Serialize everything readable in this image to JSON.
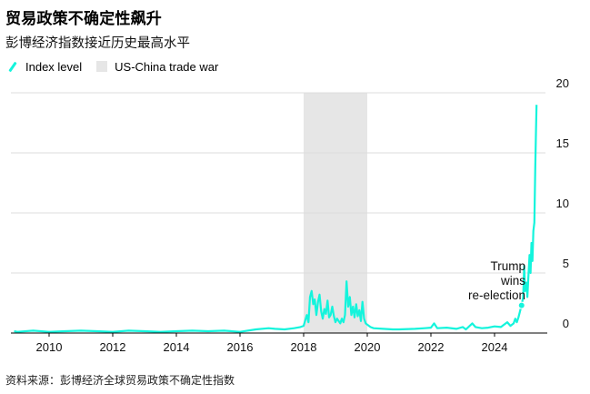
{
  "title": "贸易政策不确定性飙升",
  "subtitle": "彭博经济指数接近历史最高水平",
  "legend": {
    "series_label": "Index level",
    "shade_label": "US-China trade war"
  },
  "source": "资料来源：彭博经济全球贸易政策不确定性指数",
  "colors": {
    "line": "#14F4DC",
    "shade": "#e6e6e6",
    "grid": "#dcdcdc",
    "axis": "#000000"
  },
  "chart_data": {
    "type": "line",
    "title": "贸易政策不确定性飙升",
    "subtitle": "彭博经济指数接近历史最高水平",
    "xlabel": "",
    "ylabel": "",
    "xlim": [
      2008.8,
      2025.6
    ],
    "ylim": [
      0,
      20
    ],
    "x_ticks": [
      2010,
      2012,
      2014,
      2016,
      2018,
      2020,
      2022,
      2024
    ],
    "x_tick_labels": [
      "2010",
      "2012",
      "2014",
      "2016",
      "2018",
      "2020",
      "2022",
      "2024"
    ],
    "y_ticks": [
      0,
      5,
      10,
      15,
      20
    ],
    "y_tick_labels": [
      "0",
      "5",
      "10",
      "15",
      "20"
    ],
    "grid": true,
    "shaded_region": {
      "label": "US-China trade war",
      "start": 2018.0,
      "end": 2020.0
    },
    "annotation": {
      "lines": [
        "Trump",
        "wins",
        "re-election"
      ],
      "x": 2024.85,
      "y": 2.3
    },
    "series": [
      {
        "name": "Index level",
        "points": [
          [
            2008.9,
            0.15
          ],
          [
            2009.0,
            0.1
          ],
          [
            2009.5,
            0.2
          ],
          [
            2010.0,
            0.1
          ],
          [
            2010.5,
            0.15
          ],
          [
            2011.0,
            0.2
          ],
          [
            2011.5,
            0.15
          ],
          [
            2012.0,
            0.1
          ],
          [
            2012.5,
            0.2
          ],
          [
            2013.0,
            0.15
          ],
          [
            2013.5,
            0.1
          ],
          [
            2014.0,
            0.15
          ],
          [
            2014.5,
            0.2
          ],
          [
            2015.0,
            0.15
          ],
          [
            2015.5,
            0.2
          ],
          [
            2016.0,
            0.1
          ],
          [
            2016.5,
            0.3
          ],
          [
            2016.9,
            0.4
          ],
          [
            2017.1,
            0.35
          ],
          [
            2017.4,
            0.3
          ],
          [
            2017.7,
            0.4
          ],
          [
            2017.9,
            0.5
          ],
          [
            2018.0,
            0.6
          ],
          [
            2018.1,
            1.5
          ],
          [
            2018.15,
            0.9
          ],
          [
            2018.2,
            3.0
          ],
          [
            2018.25,
            3.5
          ],
          [
            2018.3,
            2.4
          ],
          [
            2018.35,
            2.8
          ],
          [
            2018.4,
            1.5
          ],
          [
            2018.45,
            2.6
          ],
          [
            2018.5,
            3.2
          ],
          [
            2018.55,
            1.8
          ],
          [
            2018.6,
            1.2
          ],
          [
            2018.65,
            2.0
          ],
          [
            2018.7,
            1.6
          ],
          [
            2018.75,
            2.7
          ],
          [
            2018.8,
            1.3
          ],
          [
            2018.85,
            1.5
          ],
          [
            2018.9,
            2.2
          ],
          [
            2018.95,
            1.4
          ],
          [
            2019.0,
            0.9
          ],
          [
            2019.05,
            1.2
          ],
          [
            2019.1,
            1.0
          ],
          [
            2019.15,
            0.8
          ],
          [
            2019.2,
            1.2
          ],
          [
            2019.25,
            0.9
          ],
          [
            2019.3,
            1.5
          ],
          [
            2019.35,
            4.3
          ],
          [
            2019.4,
            2.2
          ],
          [
            2019.45,
            3.0
          ],
          [
            2019.5,
            1.5
          ],
          [
            2019.55,
            2.2
          ],
          [
            2019.6,
            1.3
          ],
          [
            2019.65,
            2.4
          ],
          [
            2019.7,
            1.4
          ],
          [
            2019.75,
            1.9
          ],
          [
            2019.8,
            1.0
          ],
          [
            2019.85,
            2.6
          ],
          [
            2019.9,
            1.2
          ],
          [
            2019.95,
            0.8
          ],
          [
            2020.0,
            0.7
          ],
          [
            2020.1,
            0.5
          ],
          [
            2020.2,
            0.4
          ],
          [
            2020.5,
            0.35
          ],
          [
            2020.8,
            0.3
          ],
          [
            2021.0,
            0.3
          ],
          [
            2021.5,
            0.35
          ],
          [
            2021.8,
            0.4
          ],
          [
            2022.0,
            0.45
          ],
          [
            2022.1,
            0.8
          ],
          [
            2022.2,
            0.4
          ],
          [
            2022.5,
            0.45
          ],
          [
            2022.8,
            0.35
          ],
          [
            2023.0,
            0.5
          ],
          [
            2023.1,
            0.3
          ],
          [
            2023.3,
            0.8
          ],
          [
            2023.4,
            0.5
          ],
          [
            2023.6,
            0.4
          ],
          [
            2023.8,
            0.45
          ],
          [
            2024.0,
            0.55
          ],
          [
            2024.2,
            0.5
          ],
          [
            2024.4,
            0.9
          ],
          [
            2024.5,
            0.6
          ],
          [
            2024.6,
            0.8
          ],
          [
            2024.65,
            1.2
          ],
          [
            2024.7,
            0.9
          ],
          [
            2024.75,
            1.3
          ],
          [
            2024.8,
            1.8
          ],
          [
            2024.85,
            2.3
          ],
          [
            2024.9,
            3.0
          ],
          [
            2024.93,
            5.6
          ],
          [
            2024.96,
            3.5
          ],
          [
            2025.0,
            4.2
          ],
          [
            2025.03,
            3.0
          ],
          [
            2025.06,
            4.5
          ],
          [
            2025.1,
            6.5
          ],
          [
            2025.13,
            5.0
          ],
          [
            2025.16,
            7.5
          ],
          [
            2025.19,
            6.0
          ],
          [
            2025.22,
            8.5
          ],
          [
            2025.25,
            9.2
          ],
          [
            2025.28,
            13.8
          ],
          [
            2025.3,
            16.5
          ],
          [
            2025.32,
            19.0
          ]
        ]
      }
    ]
  }
}
